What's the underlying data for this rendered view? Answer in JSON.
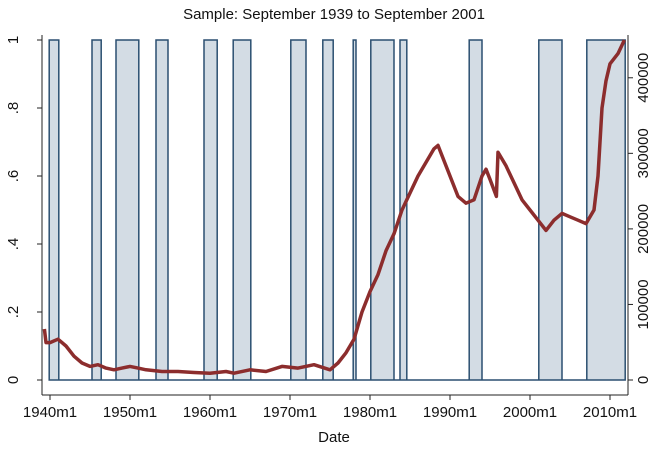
{
  "chart_data": {
    "type": "line",
    "title": "Sample: September 1939 to September 2001",
    "x_label": "Date",
    "xlim": [
      1939,
      2012.25
    ],
    "xticks": [
      {
        "value": 1940,
        "label": "1940m1"
      },
      {
        "value": 1950,
        "label": "1950m1"
      },
      {
        "value": 1960,
        "label": "1960m1"
      },
      {
        "value": 1970,
        "label": "1970m1"
      },
      {
        "value": 1980,
        "label": "1980m1"
      },
      {
        "value": 1990,
        "label": "1990m1"
      },
      {
        "value": 2000,
        "label": "2000m1"
      },
      {
        "value": 2010,
        "label": "2010m1"
      }
    ],
    "ylim": [
      0,
      1
    ],
    "yticks": [
      0,
      {
        "value": 0.2,
        "label": ".2"
      },
      {
        "value": 0.4,
        "label": ".4"
      },
      {
        "value": 0.6,
        "label": ".6"
      },
      {
        "value": 0.8,
        "label": ".8"
      },
      1
    ],
    "y2lim": [
      0,
      450000
    ],
    "y2ticks": [
      0,
      100000,
      200000,
      300000,
      400000
    ],
    "series": [
      {
        "style": "step-area",
        "color": "#2b4f70",
        "fill": "#d3dce4",
        "x": [
          1939.9,
          1939.9,
          1941.1,
          1941.1,
          1945.25,
          1945.25,
          1946.4,
          1946.4,
          1948.25,
          1948.25,
          1951.1,
          1951.1,
          1953.25,
          1953.25,
          1954.75,
          1954.75,
          1959.25,
          1959.25,
          1960.9,
          1960.9,
          1962.9,
          1962.9,
          1965.1,
          1965.1,
          1970.1,
          1970.1,
          1972,
          1972,
          1974.1,
          1974.1,
          1975.4,
          1975.4,
          1977.9,
          1977.9,
          1978.25,
          1978.25,
          1980.1,
          1980.1,
          1983,
          1983,
          1983.75,
          1983.75,
          1984.6,
          1984.6,
          1992.4,
          1992.4,
          1994,
          1994,
          2001.1,
          2001.1,
          2004,
          2004,
          2007.1,
          2007.1,
          2011.9,
          2011.9
        ],
        "values": [
          0,
          1,
          1,
          0,
          0,
          1,
          1,
          0,
          0,
          1,
          1,
          0,
          0,
          1,
          1,
          0,
          0,
          1,
          1,
          0,
          0,
          1,
          1,
          0,
          0,
          1,
          1,
          0,
          0,
          1,
          1,
          0,
          0,
          1,
          1,
          0,
          0,
          1,
          1,
          0,
          0,
          1,
          1,
          0,
          0,
          1,
          1,
          0,
          0,
          1,
          1,
          0,
          0,
          1,
          1,
          0
        ]
      },
      {
        "style": "line",
        "color": "#8c2d2d",
        "axis": "y2",
        "x": [
          1939.3,
          1939.5,
          1940,
          1941,
          1942,
          1943,
          1944,
          1945,
          1946,
          1947,
          1948,
          1949,
          1950,
          1951,
          1952,
          1954,
          1956,
          1958,
          1960,
          1962,
          1963,
          1965,
          1967,
          1969,
          1971,
          1973,
          1975,
          1976,
          1977,
          1978,
          1979,
          1980,
          1981,
          1982,
          1983,
          1984,
          1985,
          1986,
          1987,
          1988,
          1988.5,
          1989,
          1990,
          1991,
          1992,
          1993,
          1994,
          1994.5,
          1995,
          1995.8,
          1996,
          1996.5,
          1997,
          1998,
          1999,
          2000,
          2001,
          2002,
          2003,
          2004,
          2005,
          2006,
          2007,
          2008,
          2008.5,
          2009,
          2009.5,
          2010,
          2011,
          2011.8
        ],
        "values": [
          67500,
          49500,
          49500,
          54000,
          45000,
          31500,
          22500,
          18000,
          20250,
          15750,
          13500,
          15750,
          18000,
          15750,
          13500,
          11250,
          11250,
          9900,
          9000,
          11250,
          9000,
          13500,
          11250,
          18000,
          15750,
          20250,
          13500,
          22500,
          36000,
          54000,
          90000,
          117000,
          139500,
          171000,
          193500,
          225000,
          247500,
          270000,
          288000,
          306000,
          310500,
          297000,
          270000,
          243000,
          234000,
          238500,
          270000,
          279000,
          265500,
          243000,
          301500,
          292500,
          283500,
          261000,
          238500,
          225000,
          211500,
          198000,
          211500,
          220500,
          216000,
          211500,
          207000,
          225000,
          270000,
          360000,
          396000,
          418500,
          432000,
          450000
        ]
      }
    ]
  }
}
